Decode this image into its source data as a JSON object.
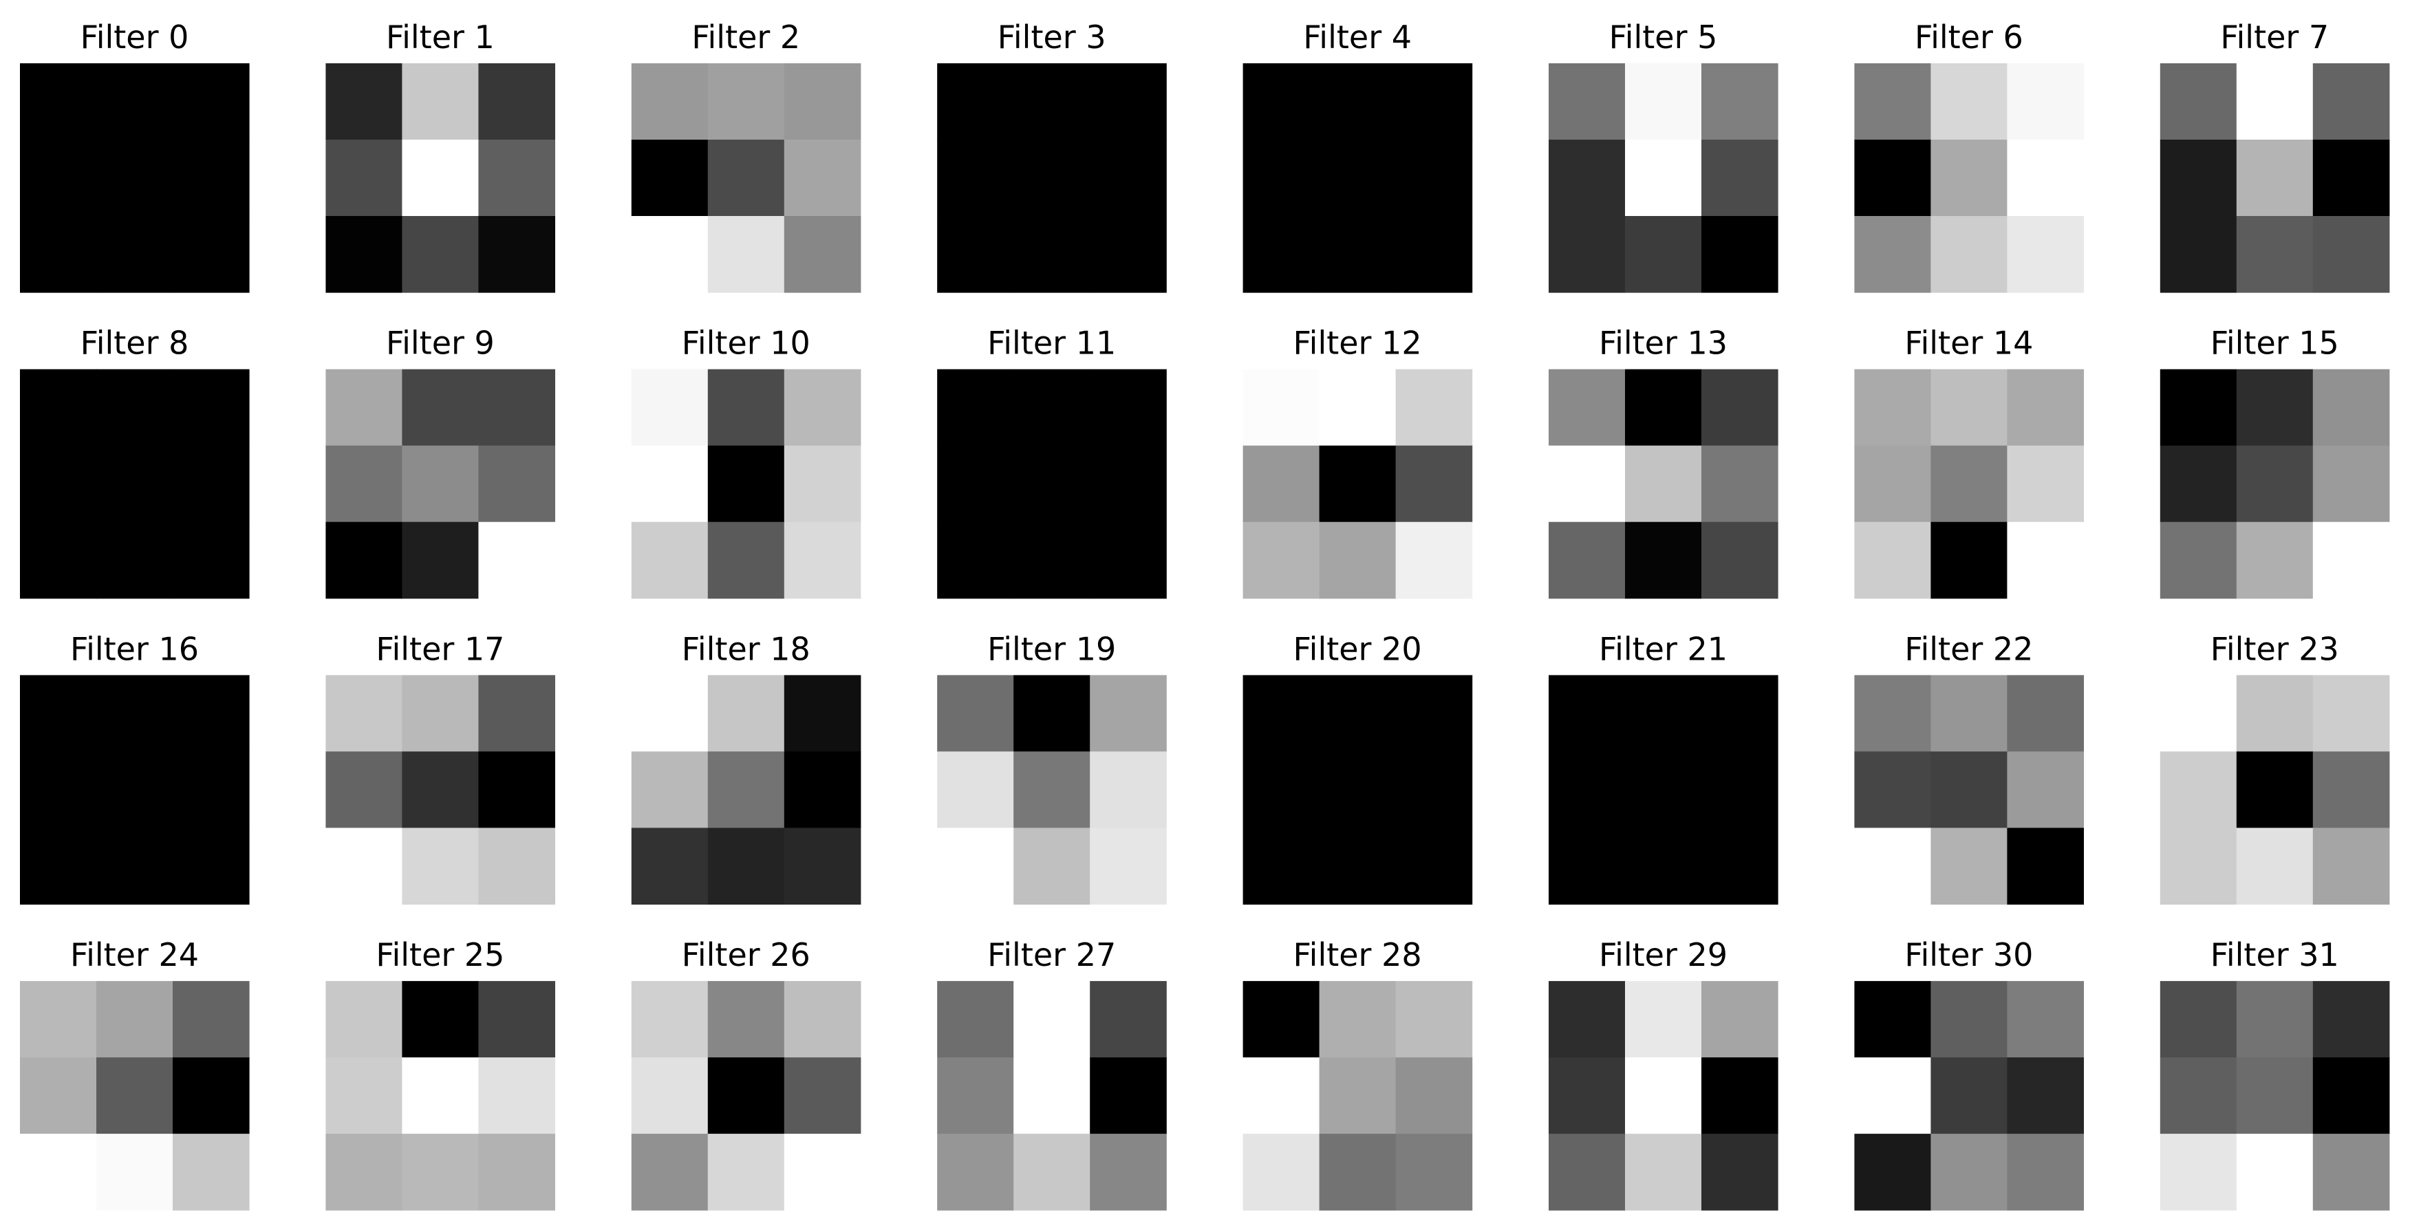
{
  "chart_data": {
    "type": "heatmap",
    "colormap": "gray",
    "value_range": [
      0,
      255
    ],
    "axes_visible": false,
    "layout": {
      "rows": 4,
      "cols": 8
    },
    "filters": [
      {
        "title": "Filter 0",
        "values": [
          [
            0,
            0,
            0
          ],
          [
            0,
            0,
            0
          ],
          [
            0,
            0,
            0
          ]
        ]
      },
      {
        "title": "Filter 1",
        "values": [
          [
            38,
            200,
            55
          ],
          [
            75,
            255,
            95
          ],
          [
            2,
            70,
            10
          ]
        ]
      },
      {
        "title": "Filter 2",
        "values": [
          [
            153,
            160,
            152
          ],
          [
            0,
            75,
            165
          ],
          [
            255,
            227,
            135
          ]
        ]
      },
      {
        "title": "Filter 3",
        "values": [
          [
            0,
            0,
            0
          ],
          [
            0,
            0,
            0
          ],
          [
            0,
            0,
            0
          ]
        ]
      },
      {
        "title": "Filter 4",
        "values": [
          [
            0,
            0,
            0
          ],
          [
            0,
            0,
            0
          ],
          [
            0,
            0,
            0
          ]
        ]
      },
      {
        "title": "Filter 5",
        "values": [
          [
            115,
            248,
            127
          ],
          [
            45,
            255,
            75
          ],
          [
            45,
            60,
            0
          ]
        ]
      },
      {
        "title": "Filter 6",
        "values": [
          [
            125,
            215,
            247
          ],
          [
            0,
            170,
            255
          ],
          [
            140,
            205,
            232
          ]
        ]
      },
      {
        "title": "Filter 7",
        "values": [
          [
            105,
            255,
            100
          ],
          [
            28,
            180,
            0
          ],
          [
            28,
            92,
            85
          ]
        ]
      },
      {
        "title": "Filter 8",
        "values": [
          [
            0,
            0,
            0
          ],
          [
            0,
            0,
            0
          ],
          [
            0,
            0,
            0
          ]
        ]
      },
      {
        "title": "Filter 9",
        "values": [
          [
            168,
            70,
            70
          ],
          [
            115,
            140,
            105
          ],
          [
            0,
            30,
            255
          ]
        ]
      },
      {
        "title": "Filter 10",
        "values": [
          [
            246,
            75,
            185
          ],
          [
            255,
            0,
            210
          ],
          [
            205,
            90,
            218
          ]
        ]
      },
      {
        "title": "Filter 11",
        "values": [
          [
            0,
            0,
            0
          ],
          [
            0,
            0,
            0
          ],
          [
            0,
            0,
            0
          ]
        ]
      },
      {
        "title": "Filter 12",
        "values": [
          [
            252,
            255,
            210
          ],
          [
            152,
            0,
            78
          ],
          [
            180,
            165,
            240
          ]
        ]
      },
      {
        "title": "Filter 13",
        "values": [
          [
            138,
            0,
            60
          ],
          [
            255,
            195,
            120
          ],
          [
            102,
            5,
            70
          ]
        ]
      },
      {
        "title": "Filter 14",
        "values": [
          [
            170,
            190,
            170
          ],
          [
            165,
            128,
            210
          ],
          [
            205,
            0,
            255
          ]
        ]
      },
      {
        "title": "Filter 15",
        "values": [
          [
            0,
            45,
            145
          ],
          [
            35,
            72,
            155
          ],
          [
            115,
            175,
            255
          ]
        ]
      },
      {
        "title": "Filter 16",
        "values": [
          [
            0,
            0,
            0
          ],
          [
            0,
            0,
            0
          ],
          [
            0,
            0,
            0
          ]
        ]
      },
      {
        "title": "Filter 17",
        "values": [
          [
            200,
            185,
            90
          ],
          [
            100,
            48,
            0
          ],
          [
            255,
            215,
            200
          ]
        ]
      },
      {
        "title": "Filter 18",
        "values": [
          [
            255,
            198,
            15
          ],
          [
            185,
            115,
            0
          ],
          [
            50,
            35,
            40
          ]
        ]
      },
      {
        "title": "Filter 19",
        "values": [
          [
            110,
            0,
            165
          ],
          [
            225,
            120,
            225
          ],
          [
            255,
            192,
            230
          ]
        ]
      },
      {
        "title": "Filter 20",
        "values": [
          [
            0,
            0,
            0
          ],
          [
            0,
            0,
            0
          ],
          [
            0,
            0,
            0
          ]
        ]
      },
      {
        "title": "Filter 21",
        "values": [
          [
            0,
            0,
            0
          ],
          [
            0,
            0,
            0
          ],
          [
            0,
            0,
            0
          ]
        ]
      },
      {
        "title": "Filter 22",
        "values": [
          [
            125,
            150,
            110
          ],
          [
            70,
            65,
            155
          ],
          [
            255,
            178,
            0
          ]
        ]
      },
      {
        "title": "Filter 23",
        "values": [
          [
            255,
            195,
            205
          ],
          [
            205,
            0,
            110
          ],
          [
            205,
            225,
            165
          ]
        ]
      },
      {
        "title": "Filter 24",
        "values": [
          [
            185,
            165,
            100
          ],
          [
            175,
            92,
            0
          ],
          [
            255,
            250,
            200
          ]
        ]
      },
      {
        "title": "Filter 25",
        "values": [
          [
            200,
            0,
            65
          ],
          [
            205,
            255,
            225
          ],
          [
            178,
            185,
            178
          ]
        ]
      },
      {
        "title": "Filter 26",
        "values": [
          [
            208,
            135,
            190
          ],
          [
            225,
            0,
            90
          ],
          [
            145,
            215,
            255
          ]
        ]
      },
      {
        "title": "Filter 27",
        "values": [
          [
            110,
            255,
            70
          ],
          [
            130,
            255,
            0
          ],
          [
            150,
            200,
            135
          ]
        ]
      },
      {
        "title": "Filter 28",
        "values": [
          [
            0,
            175,
            188
          ],
          [
            255,
            165,
            145
          ],
          [
            228,
            115,
            125
          ]
        ]
      },
      {
        "title": "Filter 29",
        "values": [
          [
            45,
            232,
            165
          ],
          [
            55,
            255,
            0
          ],
          [
            100,
            205,
            45
          ]
        ]
      },
      {
        "title": "Filter 30",
        "values": [
          [
            0,
            95,
            125
          ],
          [
            255,
            60,
            38
          ],
          [
            25,
            145,
            125
          ]
        ]
      },
      {
        "title": "Filter 31",
        "values": [
          [
            78,
            115,
            45
          ],
          [
            95,
            108,
            0
          ],
          [
            230,
            255,
            140
          ]
        ]
      }
    ]
  }
}
